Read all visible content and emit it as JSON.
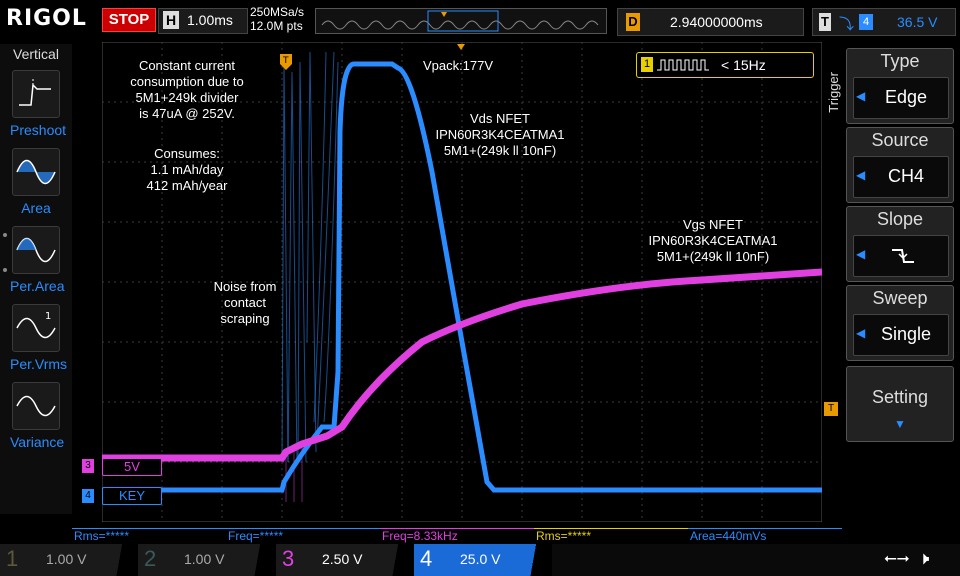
{
  "header": {
    "brand": "RIGOL",
    "run_state": "STOP",
    "timebase_key": "H",
    "timebase_value": "1.00ms",
    "sample_rate": "250MSa/s",
    "memory_depth": "12.0M pts",
    "delay_key": "D",
    "delay_value": "2.94000000ms",
    "trigger_key": "T",
    "trigger_channel": "4",
    "trigger_level": "36.5 V"
  },
  "left_menu": {
    "title": "Vertical",
    "items": [
      {
        "label": "Preshoot",
        "icon": "preshoot-icon"
      },
      {
        "label": "Area",
        "icon": "area-icon"
      },
      {
        "label": "Per.Area",
        "icon": "per-area-icon"
      },
      {
        "label": "Per.Vrms",
        "icon": "per-vrms-icon"
      },
      {
        "label": "Variance",
        "icon": "variance-icon"
      }
    ]
  },
  "right_menu": {
    "section": "Trigger",
    "panels": [
      {
        "title": "Type",
        "value": "Edge"
      },
      {
        "title": "Source",
        "value": "CH4"
      },
      {
        "title": "Slope",
        "value": "",
        "icon": "falling-edge-icon"
      },
      {
        "title": "Sweep",
        "value": "Single"
      },
      {
        "title": "Setting",
        "value": ""
      }
    ]
  },
  "freq_counter": {
    "channel": "1",
    "value": "< 15Hz"
  },
  "annotations": {
    "consumption": [
      "Constant current",
      "consumption due to",
      "5M1+249k divider",
      "is 47uA @ 252V."
    ],
    "consumes_title": "Consumes:",
    "consumes_lines": [
      "1.1 mAh/day",
      "412 mAh/year"
    ],
    "noise": [
      "Noise from",
      "contact",
      "scraping"
    ],
    "vpack": "Vpack:177V",
    "vds": [
      "Vds NFET",
      "IPN60R3K4CEATMA1",
      "5M1+(249k ll 10nF)"
    ],
    "vgs": [
      "Vgs NFET",
      "IPN60R3K4CEATMA1",
      "5M1+(249k ll 10nF)"
    ]
  },
  "channel_labels": {
    "ch3": {
      "num": "3",
      "text": "5V",
      "color": "#e040e0"
    },
    "ch4": {
      "num": "4",
      "text": "KEY",
      "color": "#2a8cff"
    }
  },
  "measurements": [
    {
      "text": "Rms=*****",
      "color": "#2a8cff"
    },
    {
      "text": "Freq=*****",
      "color": "#2a8cff"
    },
    {
      "text": "Freq=8.33kHz",
      "color": "#e040e0"
    },
    {
      "text": "Rms=*****",
      "color": "#e8d000"
    },
    {
      "text": "Area=440mVs",
      "color": "#2a8cff"
    }
  ],
  "channels": [
    {
      "num": "1",
      "scale": "1.00 V",
      "color": "#e8d000",
      "active": false
    },
    {
      "num": "2",
      "scale": "1.00 V",
      "color": "#00c8c8",
      "active": false
    },
    {
      "num": "3",
      "scale": "2.50 V",
      "color": "#e040e0",
      "active": false
    },
    {
      "num": "4",
      "scale": "25.0 V",
      "color": "#2a8cff",
      "active": true
    }
  ],
  "status_icons": [
    "usb-icon",
    "speaker-mute-icon"
  ]
}
